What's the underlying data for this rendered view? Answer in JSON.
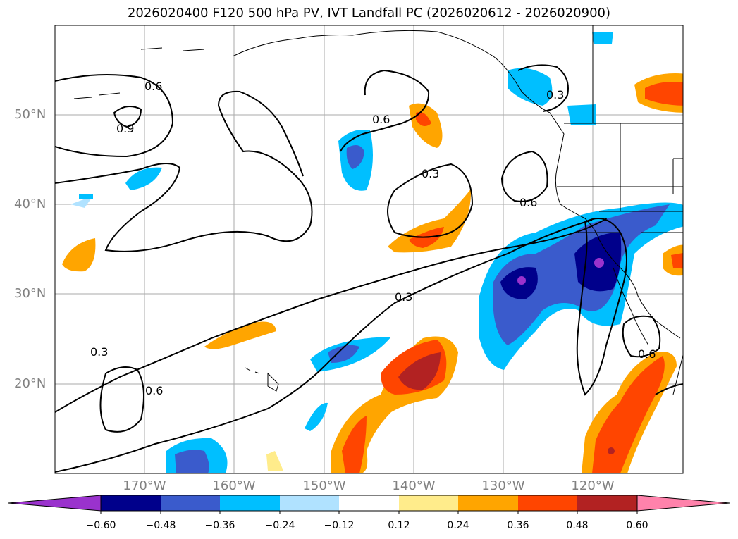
{
  "title": "2026020400 F120 500 hPa PV, IVT Landfall PC (2026020612 - 2026020900)",
  "lat_labels": [
    "50°N",
    "40°N",
    "30°N",
    "20°N"
  ],
  "lon_labels": [
    "170°W",
    "160°W",
    "150°W",
    "140°W",
    "130°W",
    "120°W"
  ],
  "contour_labels": [
    "0.6",
    "0.9",
    "0.6",
    "0.3",
    "0.3",
    "0.6",
    "0.3",
    "0.3",
    "0.6",
    "0.6"
  ],
  "colorbar": {
    "ticks": [
      "−0.60",
      "−0.48",
      "−0.36",
      "−0.24",
      "−0.12",
      "0.12",
      "0.24",
      "0.36",
      "0.48",
      "0.60"
    ],
    "colors": [
      "#9a32cd",
      "#00008b",
      "#3a5bcc",
      "#00bfff",
      "#b0e2ff",
      "#ffffff",
      "#ffec8b",
      "#ffa500",
      "#ff4500",
      "#b22222",
      "#ff82ab"
    ]
  },
  "legend": {
    "type": "filled-contour",
    "levels": [
      -0.6,
      -0.48,
      -0.36,
      -0.24,
      -0.12,
      0.12,
      0.24,
      0.36,
      0.48,
      0.6
    ],
    "extend": "both"
  }
}
